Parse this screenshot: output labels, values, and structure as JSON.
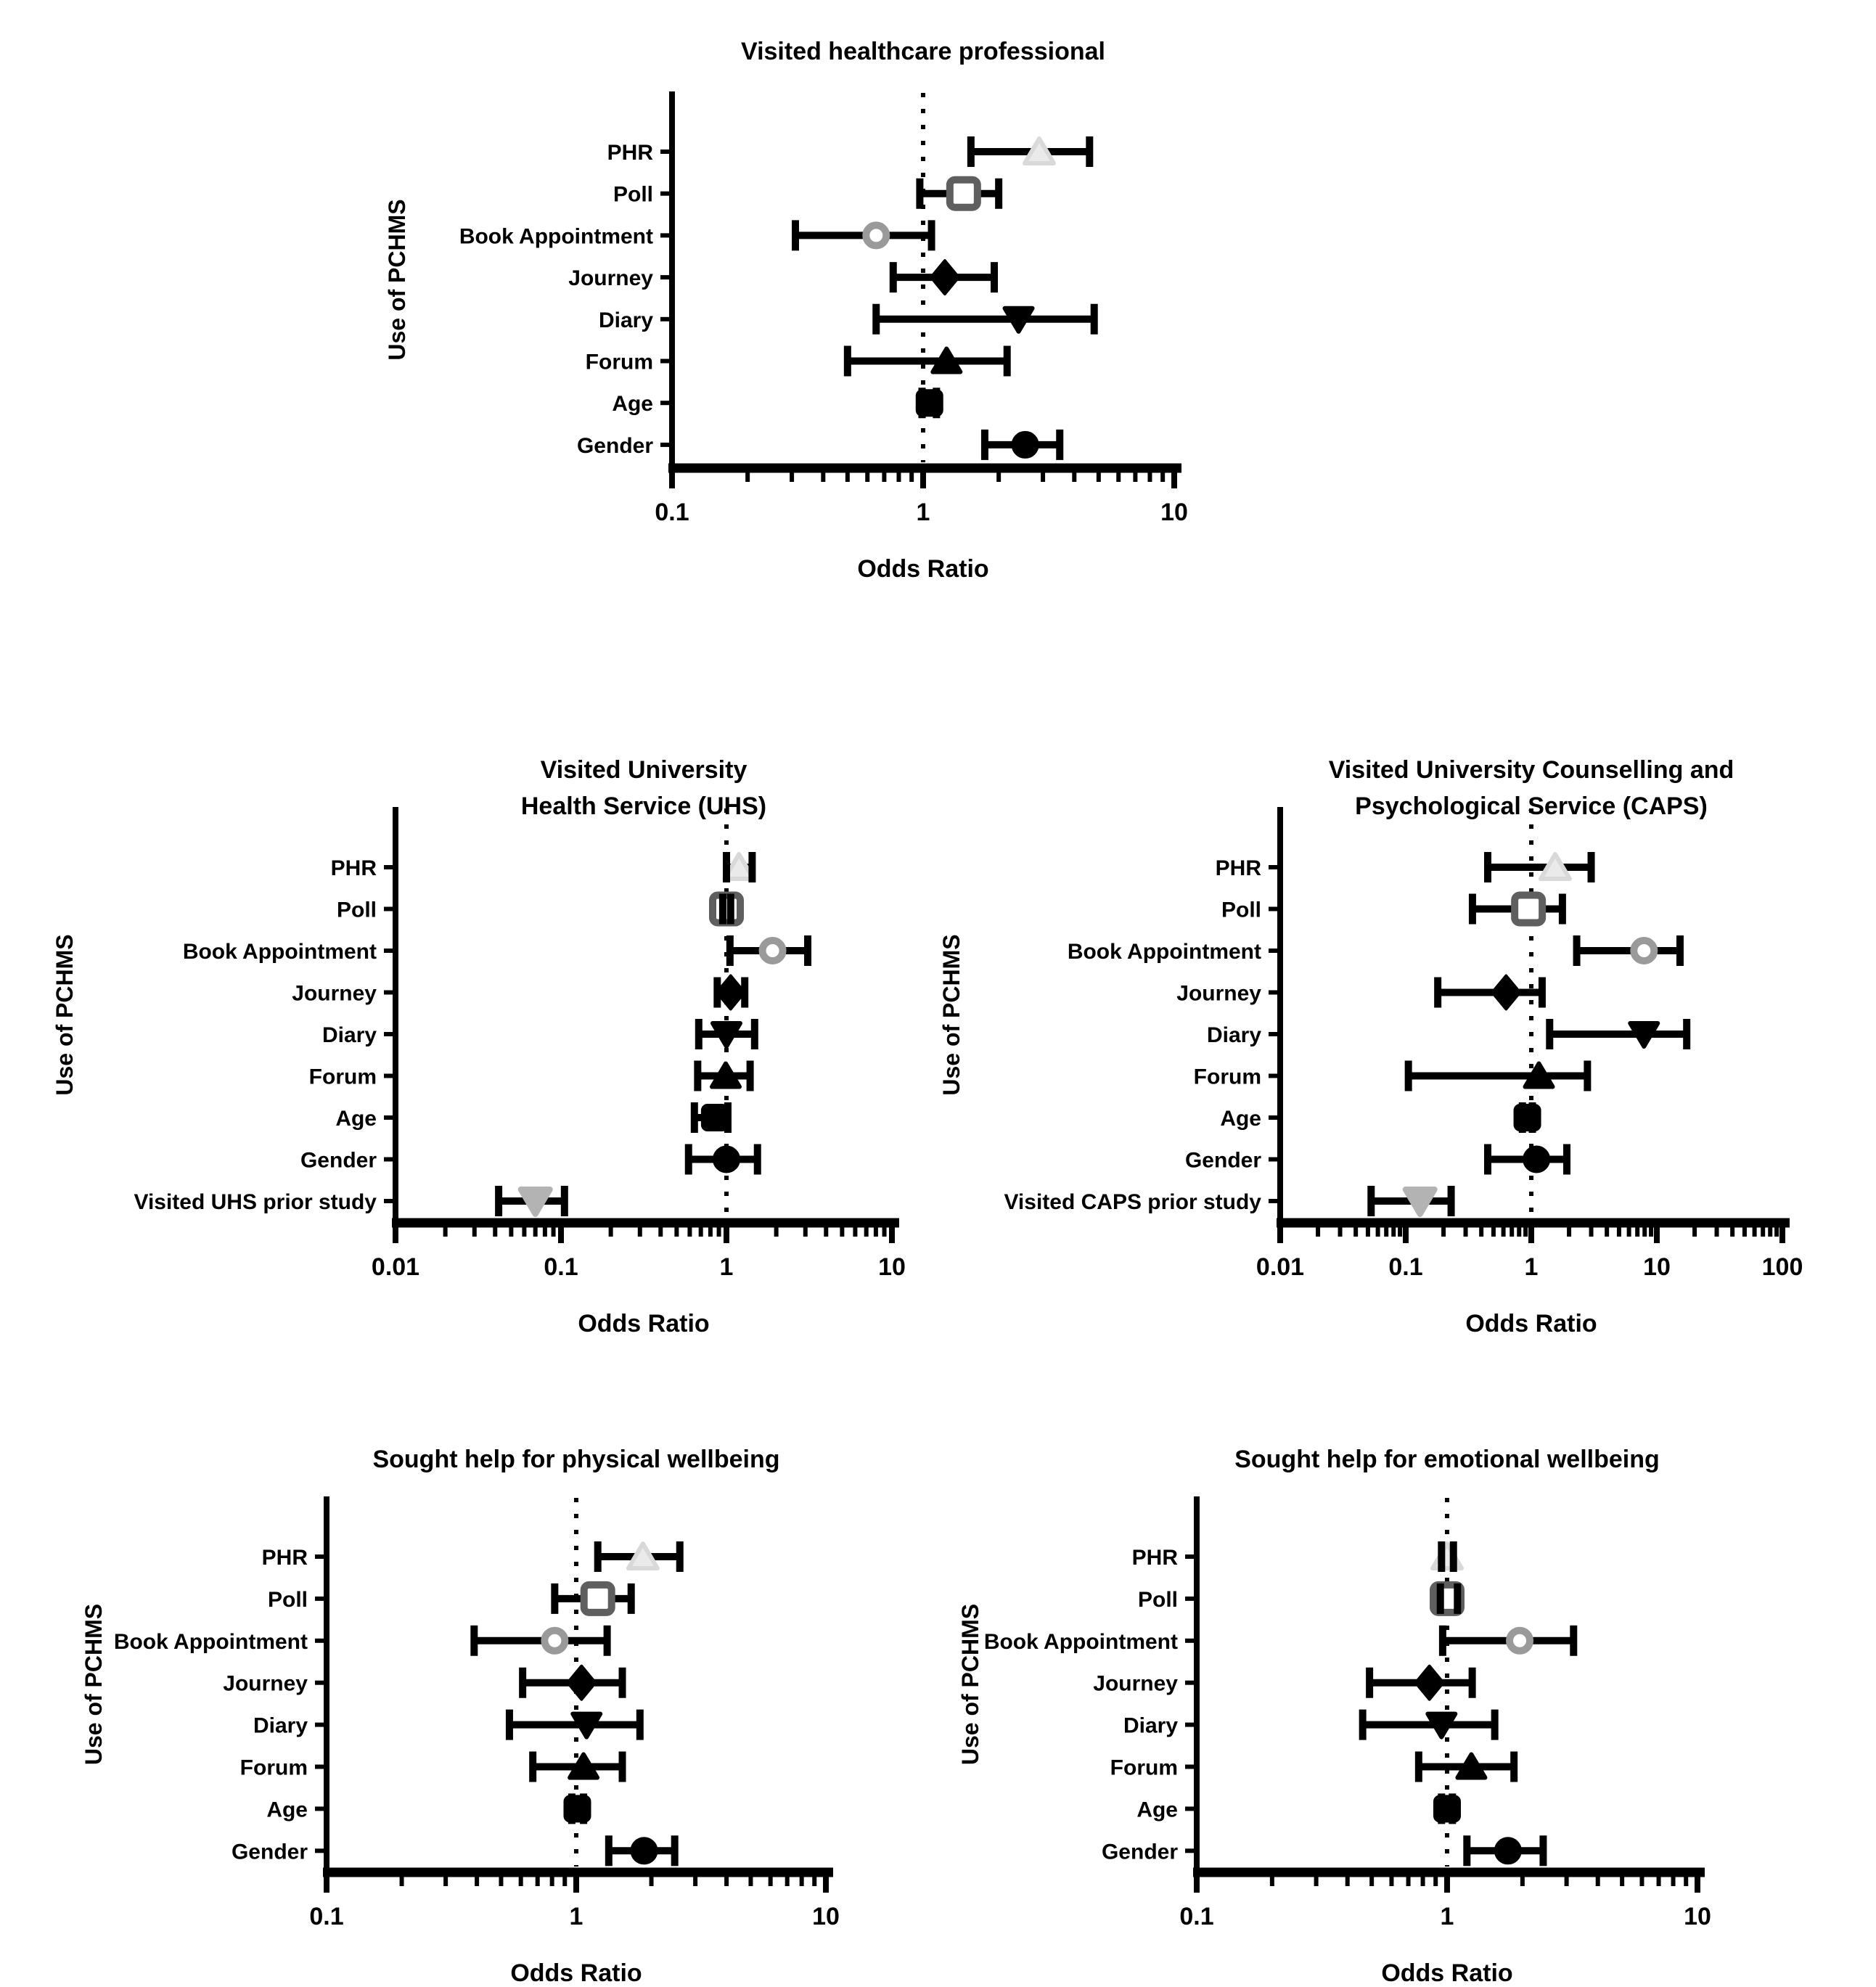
{
  "figure": {
    "background": "#ffffff",
    "ink_color": "#000000",
    "ref_line_value": "1"
  },
  "marker_styles": {
    "phr": {
      "shape": "triangle-up",
      "fill": "#eaeaea",
      "stroke": "#d9d9d9",
      "stroke_width": 6,
      "size": 40
    },
    "poll": {
      "shape": "square-open",
      "fill": "#ffffff",
      "stroke": "#5f5f5f",
      "stroke_width": 10,
      "size": 38
    },
    "book": {
      "shape": "circle-open",
      "fill": "#ffffff",
      "stroke": "#9a9a9a",
      "stroke_width": 10,
      "size": 38
    },
    "journey": {
      "shape": "diamond",
      "fill": "#000000",
      "stroke": "#000000",
      "stroke_width": 4,
      "size": 42
    },
    "diary": {
      "shape": "triangle-down",
      "fill": "#000000",
      "stroke": "#000000",
      "stroke_width": 6,
      "size": 38
    },
    "forum": {
      "shape": "triangle-up",
      "fill": "#000000",
      "stroke": "#000000",
      "stroke_width": 6,
      "size": 38
    },
    "age": {
      "shape": "square",
      "fill": "#000000",
      "stroke": "#000000",
      "stroke_width": 4,
      "size": 34
    },
    "gender": {
      "shape": "circle",
      "fill": "#000000",
      "stroke": "#000000",
      "stroke_width": 4,
      "size": 34
    },
    "prior": {
      "shape": "triangle-down",
      "fill": "#b3b3b3",
      "stroke": "#b3b3b3",
      "stroke_width": 8,
      "size": 40
    }
  },
  "chart_data": [
    {
      "id": "visited-healthcare-professional",
      "type": "scatter",
      "subtype": "forest-odds-ratio",
      "title_lines": [
        "Visited healthcare professional"
      ],
      "xlabel": "Odds Ratio",
      "ylabel": "Use of PCHMS",
      "xscale": "log",
      "xlim": [
        0.1,
        10
      ],
      "xticks": [
        0.1,
        1,
        10
      ],
      "xtick_labels": [
        "0.1",
        "1",
        "10"
      ],
      "ref_line": 1,
      "grid": false,
      "rows": [
        {
          "label": "PHR",
          "marker": "phr",
          "or": 2.9,
          "ci": [
            1.55,
            4.6
          ]
        },
        {
          "label": "Poll",
          "marker": "poll",
          "or": 1.45,
          "ci": [
            0.97,
            2.0
          ]
        },
        {
          "label": "Book Appointment",
          "marker": "book",
          "or": 0.65,
          "ci": [
            0.31,
            1.08
          ]
        },
        {
          "label": "Journey",
          "marker": "journey",
          "or": 1.22,
          "ci": [
            0.76,
            1.92
          ]
        },
        {
          "label": "Diary",
          "marker": "diary",
          "or": 2.4,
          "ci": [
            0.65,
            4.8
          ]
        },
        {
          "label": "Forum",
          "marker": "forum",
          "or": 1.24,
          "ci": [
            0.5,
            2.16
          ]
        },
        {
          "label": "Age",
          "marker": "age",
          "or": 1.06,
          "ci": [
            0.99,
            1.13
          ]
        },
        {
          "label": "Gender",
          "marker": "gender",
          "or": 2.55,
          "ci": [
            1.76,
            3.5
          ]
        }
      ]
    },
    {
      "id": "visited-uhs",
      "type": "scatter",
      "subtype": "forest-odds-ratio",
      "title_lines": [
        "Visited University",
        "Health Service (UHS)"
      ],
      "xlabel": "Odds Ratio",
      "ylabel": "Use of PCHMS",
      "xscale": "log",
      "xlim": [
        0.01,
        10
      ],
      "xticks": [
        0.01,
        0.1,
        1,
        10
      ],
      "xtick_labels": [
        "0.01",
        "0.1",
        "1",
        "10"
      ],
      "ref_line": 1,
      "grid": false,
      "rows": [
        {
          "label": "PHR",
          "marker": "phr",
          "or": 1.19,
          "ci": [
            1.0,
            1.43
          ]
        },
        {
          "label": "Poll",
          "marker": "poll",
          "or": 1.0,
          "ci": [
            0.95,
            1.06
          ]
        },
        {
          "label": "Book Appointment",
          "marker": "book",
          "or": 1.9,
          "ci": [
            1.05,
            3.1
          ]
        },
        {
          "label": "Journey",
          "marker": "journey",
          "or": 1.06,
          "ci": [
            0.88,
            1.29
          ]
        },
        {
          "label": "Diary",
          "marker": "diary",
          "or": 1.0,
          "ci": [
            0.68,
            1.48
          ]
        },
        {
          "label": "Forum",
          "marker": "forum",
          "or": 0.99,
          "ci": [
            0.67,
            1.39
          ]
        },
        {
          "label": "Age",
          "marker": "age",
          "or": 0.85,
          "ci": [
            0.64,
            1.02
          ]
        },
        {
          "label": "Gender",
          "marker": "gender",
          "or": 1.0,
          "ci": [
            0.59,
            1.54
          ]
        },
        {
          "label": "Visited UHS prior study",
          "marker": "prior",
          "or": 0.07,
          "ci": [
            0.042,
            0.105
          ]
        }
      ]
    },
    {
      "id": "visited-caps",
      "type": "scatter",
      "subtype": "forest-odds-ratio",
      "title_lines": [
        "Visited University Counselling and",
        "Psychological Service (CAPS)"
      ],
      "xlabel": "Odds Ratio",
      "ylabel": "Use of PCHMS",
      "xscale": "log",
      "xlim": [
        0.01,
        100
      ],
      "xticks": [
        0.01,
        0.1,
        1,
        10,
        100
      ],
      "xtick_labels": [
        "0.01",
        "0.1",
        "1",
        "10",
        "100"
      ],
      "ref_line": 1,
      "grid": false,
      "rows": [
        {
          "label": "PHR",
          "marker": "phr",
          "or": 1.55,
          "ci": [
            0.45,
            3.0
          ]
        },
        {
          "label": "Poll",
          "marker": "poll",
          "or": 0.95,
          "ci": [
            0.34,
            1.77
          ]
        },
        {
          "label": "Book Appointment",
          "marker": "book",
          "or": 7.9,
          "ci": [
            2.3,
            15.3
          ]
        },
        {
          "label": "Journey",
          "marker": "journey",
          "or": 0.63,
          "ci": [
            0.18,
            1.22
          ]
        },
        {
          "label": "Diary",
          "marker": "diary",
          "or": 7.9,
          "ci": [
            1.4,
            17.3
          ]
        },
        {
          "label": "Forum",
          "marker": "forum",
          "or": 1.15,
          "ci": [
            0.105,
            2.8
          ]
        },
        {
          "label": "Age",
          "marker": "age",
          "or": 0.93,
          "ci": [
            0.85,
            1.02
          ]
        },
        {
          "label": "Gender",
          "marker": "gender",
          "or": 1.1,
          "ci": [
            0.45,
            1.92
          ]
        },
        {
          "label": "Visited CAPS prior study",
          "marker": "prior",
          "or": 0.13,
          "ci": [
            0.053,
            0.23
          ]
        }
      ]
    },
    {
      "id": "physical-wellbeing",
      "type": "scatter",
      "subtype": "forest-odds-ratio",
      "title_lines": [
        "Sought help for physical wellbeing"
      ],
      "xlabel": "Odds Ratio",
      "ylabel": "Use of PCHMS",
      "xscale": "log",
      "xlim": [
        0.1,
        10
      ],
      "xticks": [
        0.1,
        1,
        10
      ],
      "xtick_labels": [
        "0.1",
        "1",
        "10"
      ],
      "ref_line": 1,
      "grid": false,
      "rows": [
        {
          "label": "PHR",
          "marker": "phr",
          "or": 1.85,
          "ci": [
            1.22,
            2.6
          ]
        },
        {
          "label": "Poll",
          "marker": "poll",
          "or": 1.22,
          "ci": [
            0.82,
            1.66
          ]
        },
        {
          "label": "Book Appointment",
          "marker": "book",
          "or": 0.82,
          "ci": [
            0.39,
            1.33
          ]
        },
        {
          "label": "Journey",
          "marker": "journey",
          "or": 1.05,
          "ci": [
            0.61,
            1.53
          ]
        },
        {
          "label": "Diary",
          "marker": "diary",
          "or": 1.1,
          "ci": [
            0.54,
            1.8
          ]
        },
        {
          "label": "Forum",
          "marker": "forum",
          "or": 1.07,
          "ci": [
            0.67,
            1.53
          ]
        },
        {
          "label": "Age",
          "marker": "age",
          "or": 1.01,
          "ci": [
            0.96,
            1.07
          ]
        },
        {
          "label": "Gender",
          "marker": "gender",
          "or": 1.87,
          "ci": [
            1.35,
            2.48
          ]
        }
      ]
    },
    {
      "id": "emotional-wellbeing",
      "type": "scatter",
      "subtype": "forest-odds-ratio",
      "title_lines": [
        "Sought help for emotional wellbeing"
      ],
      "xlabel": "Odds Ratio",
      "ylabel": "Use of PCHMS",
      "xscale": "log",
      "xlim": [
        0.1,
        10
      ],
      "xticks": [
        0.1,
        1,
        10
      ],
      "xtick_labels": [
        "0.1",
        "1",
        "10"
      ],
      "ref_line": 1,
      "grid": false,
      "rows": [
        {
          "label": "PHR",
          "marker": "phr",
          "or": 1.0,
          "ci": [
            0.95,
            1.06
          ]
        },
        {
          "label": "Poll",
          "marker": "poll",
          "or": 1.0,
          "ci": [
            0.94,
            1.1
          ]
        },
        {
          "label": "Book Appointment",
          "marker": "book",
          "or": 1.95,
          "ci": [
            0.96,
            3.2
          ]
        },
        {
          "label": "Journey",
          "marker": "journey",
          "or": 0.85,
          "ci": [
            0.49,
            1.26
          ]
        },
        {
          "label": "Diary",
          "marker": "diary",
          "or": 0.95,
          "ci": [
            0.46,
            1.55
          ]
        },
        {
          "label": "Forum",
          "marker": "forum",
          "or": 1.25,
          "ci": [
            0.77,
            1.85
          ]
        },
        {
          "label": "Age",
          "marker": "age",
          "or": 1.0,
          "ci": [
            0.95,
            1.05
          ]
        },
        {
          "label": "Gender",
          "marker": "gender",
          "or": 1.75,
          "ci": [
            1.2,
            2.42
          ]
        }
      ]
    }
  ]
}
